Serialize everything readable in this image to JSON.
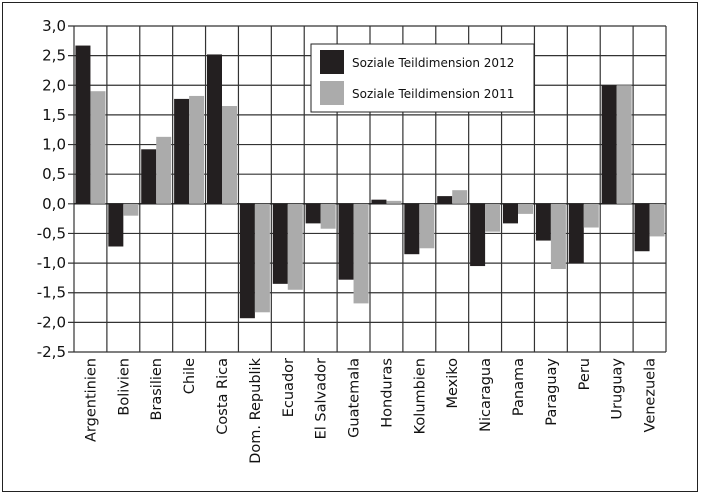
{
  "chart_data": {
    "type": "bar",
    "categories": [
      "Argentinien",
      "Bolivien",
      "Brasilien",
      "Chile",
      "Costa Rica",
      "Dom. Republik",
      "Ecuador",
      "El Salvador",
      "Guatemala",
      "Honduras",
      "Kolumbien",
      "Mexiko",
      "Nicaragua",
      "Panama",
      "Paraguay",
      "Peru",
      "Uruguay",
      "Venezuela"
    ],
    "series": [
      {
        "name": "Soziale Teildimension 2012",
        "color": "#231f20",
        "values": [
          2.67,
          -0.72,
          0.92,
          1.77,
          2.52,
          -1.93,
          -1.35,
          -0.33,
          -1.28,
          0.07,
          -0.85,
          0.13,
          -1.05,
          -0.33,
          -0.62,
          -1.0,
          2.0,
          -0.8
        ]
      },
      {
        "name": "Soziale Teildimension 2011",
        "color": "#ababab",
        "values": [
          1.9,
          -0.2,
          1.13,
          1.82,
          1.65,
          -1.83,
          -1.45,
          -0.42,
          -1.68,
          0.05,
          -0.75,
          0.23,
          -0.47,
          -0.17,
          -1.1,
          -0.4,
          2.0,
          -0.55
        ]
      }
    ],
    "yticks": [
      "3,0",
      "2,5",
      "2,0",
      "1,5",
      "1,0",
      "0,5",
      "0,0",
      "-0,5",
      "-1,0",
      "-1,5",
      "-2,0",
      "-2,5"
    ],
    "ylim": [
      -2.5,
      3.0
    ],
    "grid": true,
    "legend_position": "top-right"
  }
}
